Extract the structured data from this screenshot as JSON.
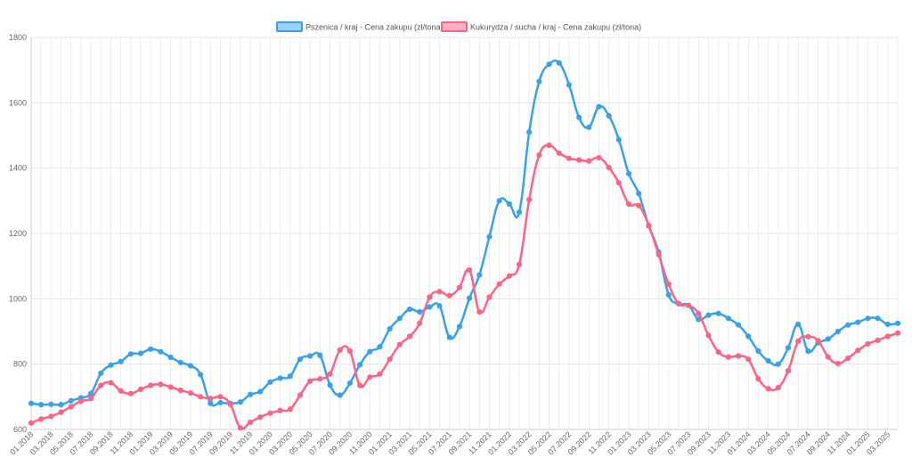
{
  "chart_data": {
    "type": "line",
    "legend_position": "top",
    "grid": true,
    "ylim": [
      600,
      1800
    ],
    "y_ticks": [
      600,
      800,
      1000,
      1200,
      1400,
      1600,
      1800
    ],
    "x_tick_labels": [
      "01.2018",
      "03.2018",
      "05.2018",
      "07.2018",
      "09.2018",
      "11.2018",
      "01.2019",
      "03.2019",
      "05.2019",
      "07.2019",
      "09.2019",
      "11.2019",
      "01.2020",
      "03.2020",
      "05.2020",
      "07.2020",
      "09.2020",
      "11.2020",
      "01.2021",
      "03.2021",
      "05.2021",
      "07.2021",
      "09.2021",
      "11.2021",
      "01.2022",
      "03.2022",
      "05.2022",
      "07.2022",
      "09.2022",
      "11.2022",
      "01.2023",
      "03.2023",
      "05.2023",
      "07.2023",
      "09.2023",
      "11.2023",
      "01.2024",
      "03.2024",
      "05.2024",
      "07.2024",
      "09.2024",
      "11.2024",
      "01.2025",
      "03.2025"
    ],
    "series": [
      {
        "name": "Pszenica / kraj - Cena zakupu (zł/tona)",
        "color": "#36a2eb",
        "fill": "#9ad0f5",
        "values": [
          680,
          676,
          677,
          676,
          688,
          697,
          710,
          772,
          797,
          808,
          831,
          833,
          846,
          838,
          821,
          805,
          795,
          768,
          680,
          682,
          680,
          684,
          707,
          716,
          745,
          757,
          763,
          815,
          825,
          827,
          736,
          705,
          742,
          798,
          838,
          853,
          908,
          940,
          968,
          960,
          975,
          978,
          882,
          915,
          1002,
          1073,
          1190,
          1300,
          1290,
          1265,
          1510,
          1665,
          1718,
          1722,
          1655,
          1555,
          1525,
          1588,
          1560,
          1487,
          1383,
          1322,
          1223,
          1143,
          1012,
          985,
          980,
          937,
          950,
          955,
          940,
          920,
          885,
          840,
          810,
          800,
          850,
          922,
          840,
          865,
          877,
          900,
          920,
          928,
          940,
          940,
          922,
          925
        ]
      },
      {
        "name": "Kukurydza / sucha / kraj - Cena zakupu (zł/tona)",
        "color": "#ff6384",
        "fill": "#ffb1c1",
        "values": [
          620,
          632,
          640,
          653,
          670,
          687,
          695,
          735,
          743,
          718,
          710,
          723,
          735,
          738,
          730,
          720,
          712,
          700,
          695,
          700,
          677,
          605,
          622,
          638,
          650,
          658,
          662,
          705,
          748,
          755,
          770,
          843,
          840,
          735,
          760,
          770,
          815,
          860,
          885,
          925,
          1005,
          1022,
          1010,
          1035,
          1088,
          960,
          1005,
          1045,
          1070,
          1105,
          1303,
          1440,
          1470,
          1446,
          1430,
          1425,
          1422,
          1432,
          1402,
          1355,
          1290,
          1285,
          1225,
          1135,
          1045,
          985,
          980,
          955,
          888,
          837,
          822,
          825,
          815,
          755,
          725,
          728,
          780,
          870,
          884,
          872,
          822,
          802,
          818,
          842,
          862,
          873,
          885,
          895
        ]
      }
    ]
  }
}
